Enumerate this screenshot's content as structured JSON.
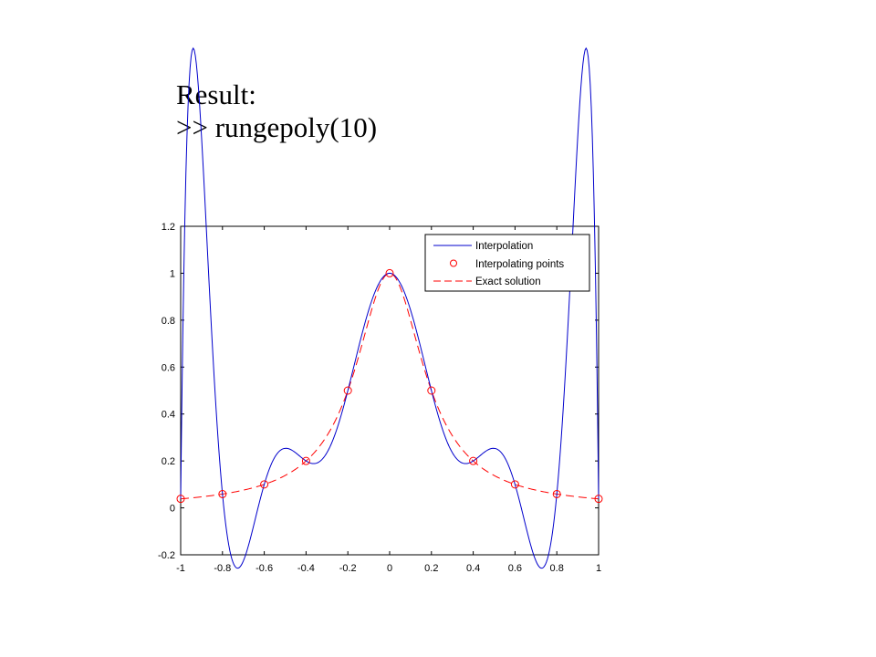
{
  "caption": {
    "line1": "Result:",
    "line2": ">> rungepoly(10)"
  },
  "chart_data": {
    "type": "line",
    "title": "",
    "xlabel": "",
    "ylabel": "",
    "xlim": [
      -1,
      1
    ],
    "ylim": [
      -0.2,
      1.2
    ],
    "xticks": [
      -1,
      -0.8,
      -0.6,
      -0.4,
      -0.2,
      0,
      0.2,
      0.4,
      0.6,
      0.8,
      1
    ],
    "xtick_labels": [
      "-1",
      "-0.8",
      "-0.6",
      "-0.4",
      "-0.2",
      "0",
      "0.2",
      "0.4",
      "0.6",
      "0.8",
      "1"
    ],
    "yticks": [
      -0.2,
      0,
      0.2,
      0.4,
      0.6,
      0.8,
      1,
      1.2
    ],
    "ytick_labels": [
      "-0.2",
      "0",
      "0.2",
      "0.4",
      "0.6",
      "0.8",
      "1",
      "1.2"
    ],
    "grid": false,
    "legend_position": "top-right",
    "series": [
      {
        "name": "Interpolation",
        "style": "solid",
        "color": "#0000cc",
        "function": "degree-10 polynomial interpolant of 1/(1+25x^2) at 11 equispaced nodes"
      },
      {
        "name": "Interpolating points",
        "style": "circle-markers",
        "color": "#ff0000",
        "x": [
          -1,
          -0.8,
          -0.6,
          -0.4,
          -0.2,
          0,
          0.2,
          0.4,
          0.6,
          0.8,
          1
        ],
        "y": [
          0.0385,
          0.0588,
          0.1,
          0.2,
          0.5,
          1.0,
          0.5,
          0.2,
          0.1,
          0.0588,
          0.0385
        ]
      },
      {
        "name": "Exact solution",
        "style": "dashed",
        "color": "#ff0000",
        "function": "1/(1+25x^2)"
      }
    ]
  }
}
